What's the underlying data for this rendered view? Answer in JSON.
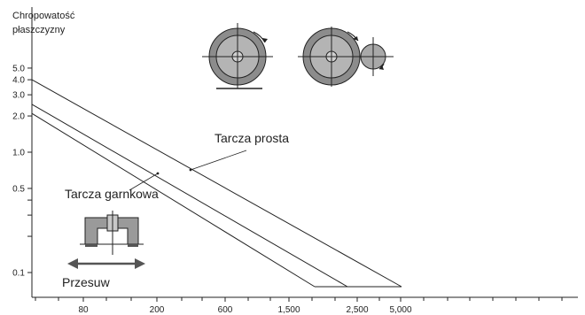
{
  "chart_data": {
    "type": "line",
    "title": "",
    "ylabel_lines": [
      "Chropowatość",
      "płaszczyzny"
    ],
    "xlabel": "",
    "y_scale": "log",
    "ylim": [
      0.1,
      6.5
    ],
    "y_ticks": [
      {
        "value": 0.1,
        "label": "0.1"
      },
      {
        "value": 0.5,
        "label": "0.5"
      },
      {
        "value": 1.0,
        "label": "1.0"
      },
      {
        "value": 2.0,
        "label": "2.0"
      },
      {
        "value": 3.0,
        "label": "3.0"
      },
      {
        "value": 4.0,
        "label": "4.0"
      },
      {
        "value": 5.0,
        "label": "5.0"
      }
    ],
    "y_minor_ticks": [
      0.2,
      0.3,
      0.4
    ],
    "x_ticks": [
      {
        "value": 80,
        "label": "80"
      },
      {
        "value": 200,
        "label": "200"
      },
      {
        "value": 600,
        "label": "600"
      },
      {
        "value": 1500,
        "label": "1,500"
      },
      {
        "value": 2500,
        "label": "2,500"
      },
      {
        "value": 5000,
        "label": "5,000"
      }
    ],
    "series": [
      {
        "id": "tarcza-prosta",
        "x": [
          0,
          1800,
          5000
        ],
        "y": [
          4.0,
          null,
          0.1
        ],
        "y_start": 4.0,
        "break_y": 0.1
      },
      {
        "id": "middle",
        "y_start": 2.5
      },
      {
        "id": "tarcza-garnkowa",
        "y_start": 2.1
      }
    ],
    "lines": [
      {
        "y0": 4.0,
        "bend_y": 0.1,
        "end_tick": "5,000"
      },
      {
        "y0": 2.5,
        "bend_y": 0.1,
        "end_tick": "2,500"
      },
      {
        "y0": 2.1,
        "bend_y": 0.1,
        "end_tick": "1,500"
      }
    ],
    "annotations": {
      "tarcza_prosta": "Tarcza prosta",
      "tarcza_garnkowa": "Tarcza garnkowa",
      "przesuw": "Przesuw"
    },
    "grid": false,
    "legend": "none"
  }
}
